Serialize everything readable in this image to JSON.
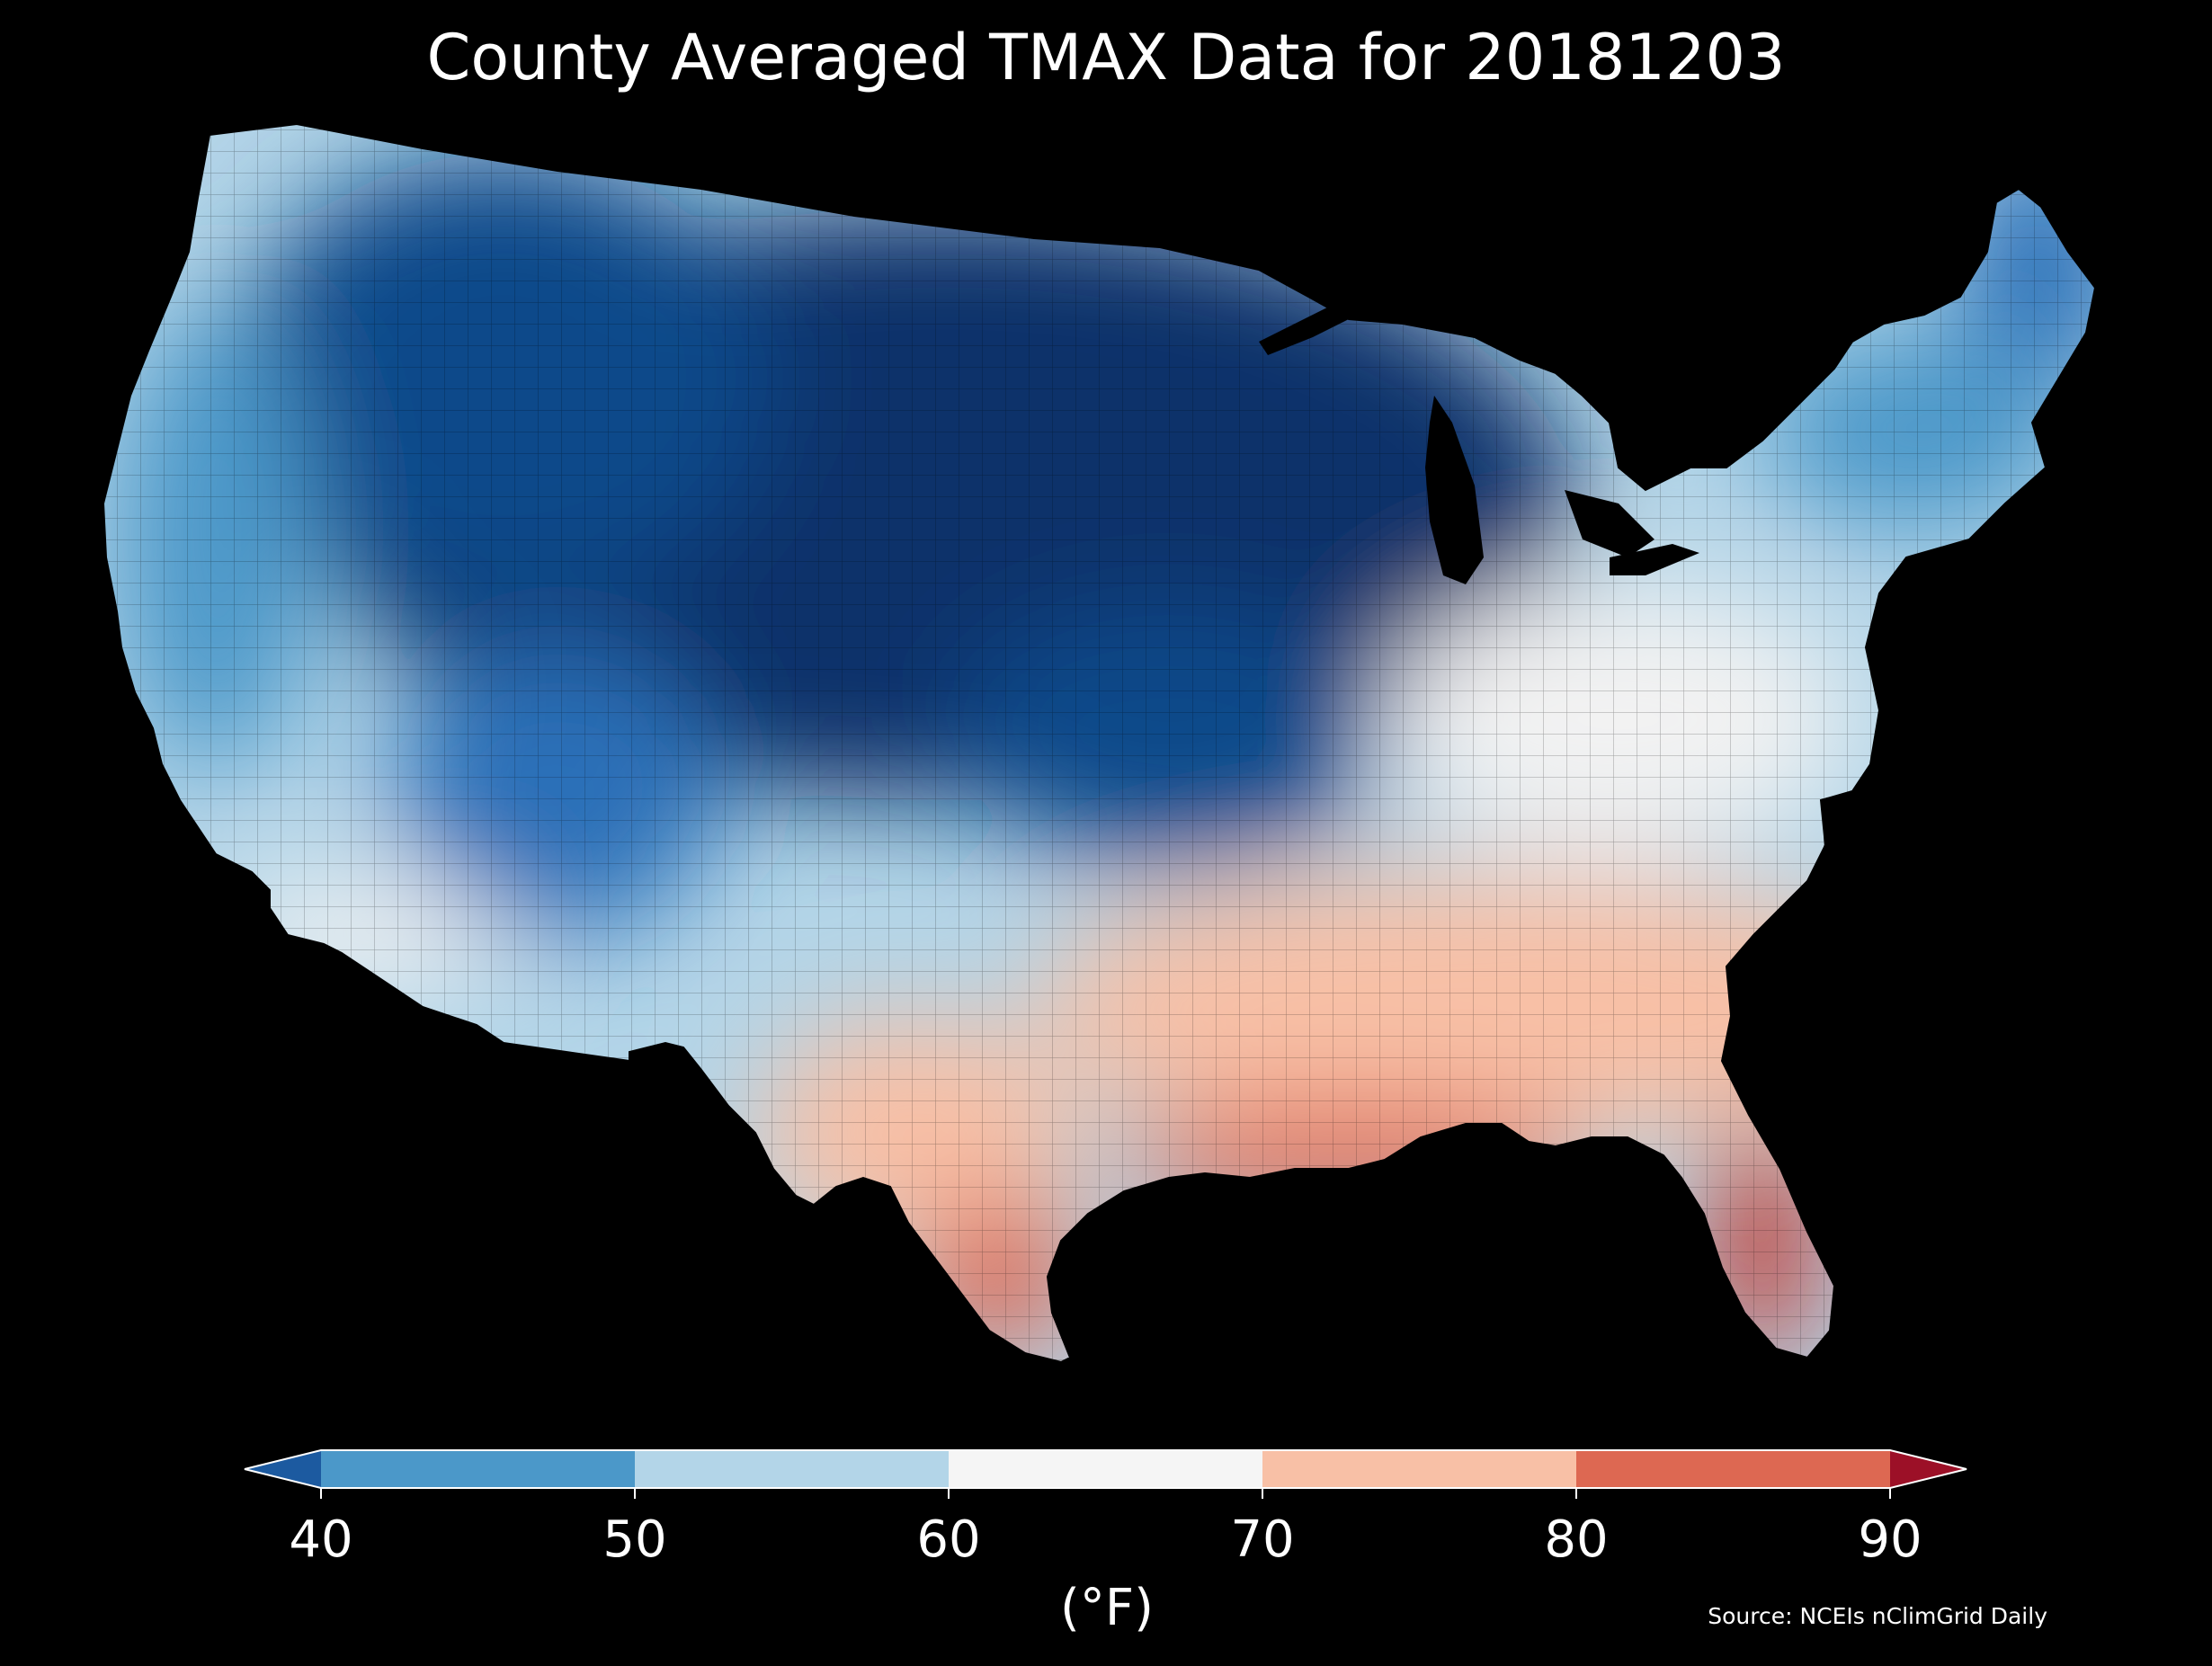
{
  "title": "County Averaged TMAX Data for 20181203",
  "colorbar": {
    "unit_label": "(°F)",
    "ticks": [
      "40",
      "50",
      "60",
      "70",
      "80",
      "90"
    ],
    "bins": [
      {
        "range": "<40",
        "color": "#1c5aa0"
      },
      {
        "range": "40-50",
        "color": "#4b98c9"
      },
      {
        "range": "50-60",
        "color": "#b3d5e8"
      },
      {
        "range": "60-70",
        "color": "#f5f5f5"
      },
      {
        "range": "70-80",
        "color": "#f8c0a6"
      },
      {
        "range": "80-90",
        "color": "#dd6852"
      },
      {
        "range": ">90",
        "color": "#9c1027"
      }
    ]
  },
  "source": "Source: NCEIs nClimGrid Daily",
  "map_colors": {
    "coldest": "#08306b",
    "very_cold": "#0f4a8a",
    "cold": "#2b6fb8",
    "cool": "#4b98c9",
    "mild": "#b3d5e8",
    "neutral": "#f2f2f2",
    "warm": "#f8c0a6",
    "hot": "#dd6852",
    "hottest": "#c43a33"
  }
}
